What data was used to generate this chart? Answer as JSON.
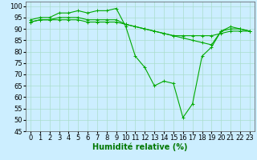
{
  "title": "",
  "xlabel": "Humidité relative (%)",
  "ylabel": "",
  "bg_color": "#cceeff",
  "grid_color": "#aaddcc",
  "line_color": "#00aa00",
  "xlim": [
    -0.5,
    23.5
  ],
  "ylim": [
    45,
    102
  ],
  "yticks": [
    45,
    50,
    55,
    60,
    65,
    70,
    75,
    80,
    85,
    90,
    95,
    100
  ],
  "xticks": [
    0,
    1,
    2,
    3,
    4,
    5,
    6,
    7,
    8,
    9,
    10,
    11,
    12,
    13,
    14,
    15,
    16,
    17,
    18,
    19,
    20,
    21,
    22,
    23
  ],
  "series": [
    [
      94,
      95,
      95,
      97,
      97,
      98,
      97,
      98,
      98,
      99,
      91,
      78,
      73,
      65,
      67,
      66,
      51,
      57,
      78,
      82,
      89,
      90,
      90,
      89
    ],
    [
      93,
      94,
      94,
      95,
      95,
      95,
      94,
      94,
      94,
      94,
      92,
      91,
      90,
      89,
      88,
      87,
      86,
      85,
      84,
      83,
      89,
      91,
      90,
      89
    ],
    [
      93,
      94,
      94,
      94,
      94,
      94,
      93,
      93,
      93,
      93,
      92,
      91,
      90,
      89,
      88,
      87,
      87,
      87,
      87,
      87,
      88,
      89,
      89,
      89
    ]
  ],
  "xlabel_fontsize": 7,
  "tick_fontsize": 6,
  "marker": "+"
}
